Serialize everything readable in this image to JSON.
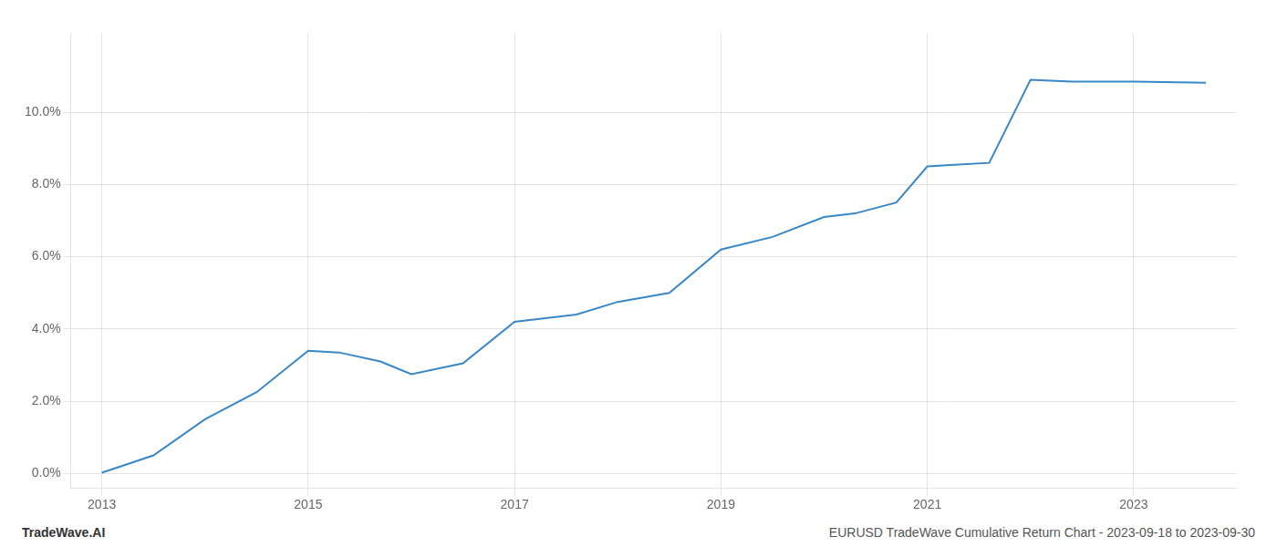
{
  "chart_data": {
    "type": "line",
    "x": [
      2013.0,
      2013.5,
      2014.0,
      2014.5,
      2015.0,
      2015.3,
      2015.7,
      2016.0,
      2016.5,
      2017.0,
      2017.3,
      2017.6,
      2018.0,
      2018.5,
      2019.0,
      2019.5,
      2020.0,
      2020.3,
      2020.7,
      2021.0,
      2021.3,
      2021.6,
      2022.0,
      2022.4,
      2023.0,
      2023.7
    ],
    "values": [
      0.02,
      0.5,
      1.5,
      2.25,
      3.4,
      3.35,
      3.1,
      2.75,
      3.05,
      4.2,
      4.3,
      4.4,
      4.75,
      5.0,
      6.2,
      6.55,
      7.1,
      7.2,
      7.5,
      8.5,
      8.55,
      8.6,
      10.9,
      10.85,
      10.85,
      10.82
    ],
    "color": "#3a87c8",
    "xlim": [
      2012.7,
      2024.0
    ],
    "ylim": [
      -0.4,
      12.2
    ],
    "xticks": [
      2013,
      2015,
      2017,
      2019,
      2021,
      2023
    ],
    "yticks": [
      {
        "value": 0.0,
        "label": "0.0%"
      },
      {
        "value": 2.0,
        "label": "2.0%"
      },
      {
        "value": 4.0,
        "label": "4.0%"
      },
      {
        "value": 6.0,
        "label": "6.0%"
      },
      {
        "value": 8.0,
        "label": "8.0%"
      },
      {
        "value": 10.0,
        "label": "10.0%"
      }
    ],
    "grid": true,
    "annotations": [
      "TradeWave.AI",
      "EURUSD TradeWave Cumulative Return Chart - 2023-09-18 to 2023-09-30"
    ]
  }
}
